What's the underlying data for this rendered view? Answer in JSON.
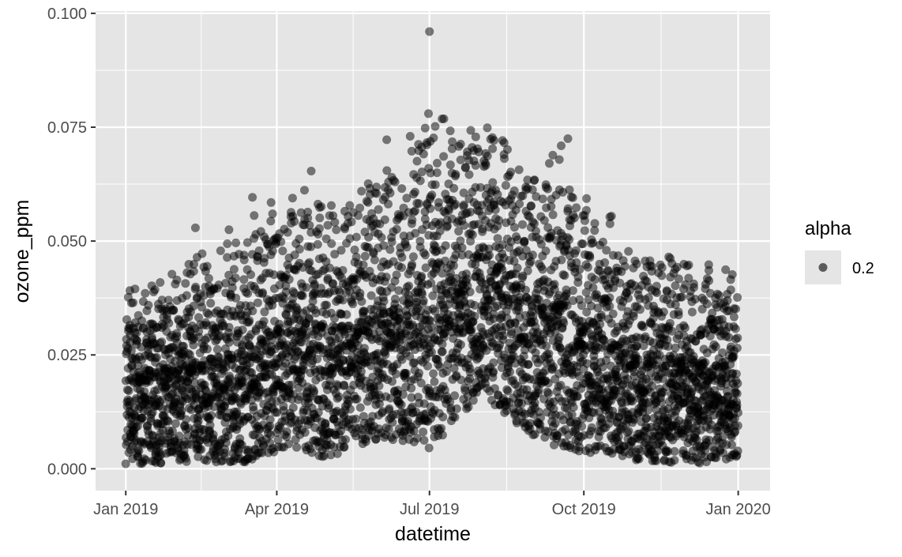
{
  "chart_data": {
    "type": "scatter",
    "title": "",
    "xlabel": "datetime",
    "ylabel": "ozone_ppm",
    "x_ticks": [
      "Jan 2019",
      "Apr 2019",
      "Jul 2019",
      "Oct 2019",
      "Jan 2020"
    ],
    "x_tick_dates": [
      "2019-01-01",
      "2019-04-01",
      "2019-07-01",
      "2019-10-01",
      "2020-01-01"
    ],
    "xlim": [
      "2018-12-14",
      "2020-01-20"
    ],
    "y_ticks": [
      "0.000",
      "0.025",
      "0.050",
      "0.075",
      "0.100"
    ],
    "ylim": [
      -0.0048,
      0.1005
    ],
    "grid": true,
    "panel_background": "#e5e5e5",
    "grid_color": "#ffffff",
    "point_color": "#000000",
    "point_alpha": 0.5,
    "legend": {
      "title": "alpha",
      "position": "right",
      "entries": [
        {
          "label": "0.2"
        }
      ]
    },
    "series": [
      {
        "x_start": "2019-01-01",
        "x_end": "2019-12-31",
        "envelope": [
          [
            "2019-01-01",
            0.0,
            0.044
          ],
          [
            "2019-01-15",
            0.0,
            0.046
          ],
          [
            "2019-02-01",
            0.0,
            0.048
          ],
          [
            "2019-02-10",
            0.0,
            0.056
          ],
          [
            "2019-02-20",
            0.0,
            0.05
          ],
          [
            "2019-03-01",
            0.0,
            0.054
          ],
          [
            "2019-03-15",
            0.0,
            0.059
          ],
          [
            "2019-04-01",
            0.002,
            0.064
          ],
          [
            "2019-04-15",
            0.003,
            0.068
          ],
          [
            "2019-05-01",
            0.0,
            0.066
          ],
          [
            "2019-05-15",
            0.003,
            0.064
          ],
          [
            "2019-06-01",
            0.005,
            0.074
          ],
          [
            "2019-06-15",
            0.004,
            0.072
          ],
          [
            "2019-07-01",
            0.002,
            0.096
          ],
          [
            "2019-07-15",
            0.008,
            0.079
          ],
          [
            "2019-08-01",
            0.015,
            0.086
          ],
          [
            "2019-08-15",
            0.01,
            0.079
          ],
          [
            "2019-09-01",
            0.005,
            0.072
          ],
          [
            "2019-09-15",
            0.003,
            0.082
          ],
          [
            "2019-10-01",
            0.002,
            0.065
          ],
          [
            "2019-10-15",
            0.002,
            0.057
          ],
          [
            "2019-11-01",
            0.0,
            0.053
          ],
          [
            "2019-11-15",
            0.0,
            0.053
          ],
          [
            "2019-12-01",
            0.0,
            0.051
          ],
          [
            "2019-12-15",
            0.0,
            0.049
          ],
          [
            "2019-12-31",
            0.001,
            0.046
          ]
        ],
        "max_point": [
          "2019-07-01",
          0.096
        ]
      }
    ]
  }
}
